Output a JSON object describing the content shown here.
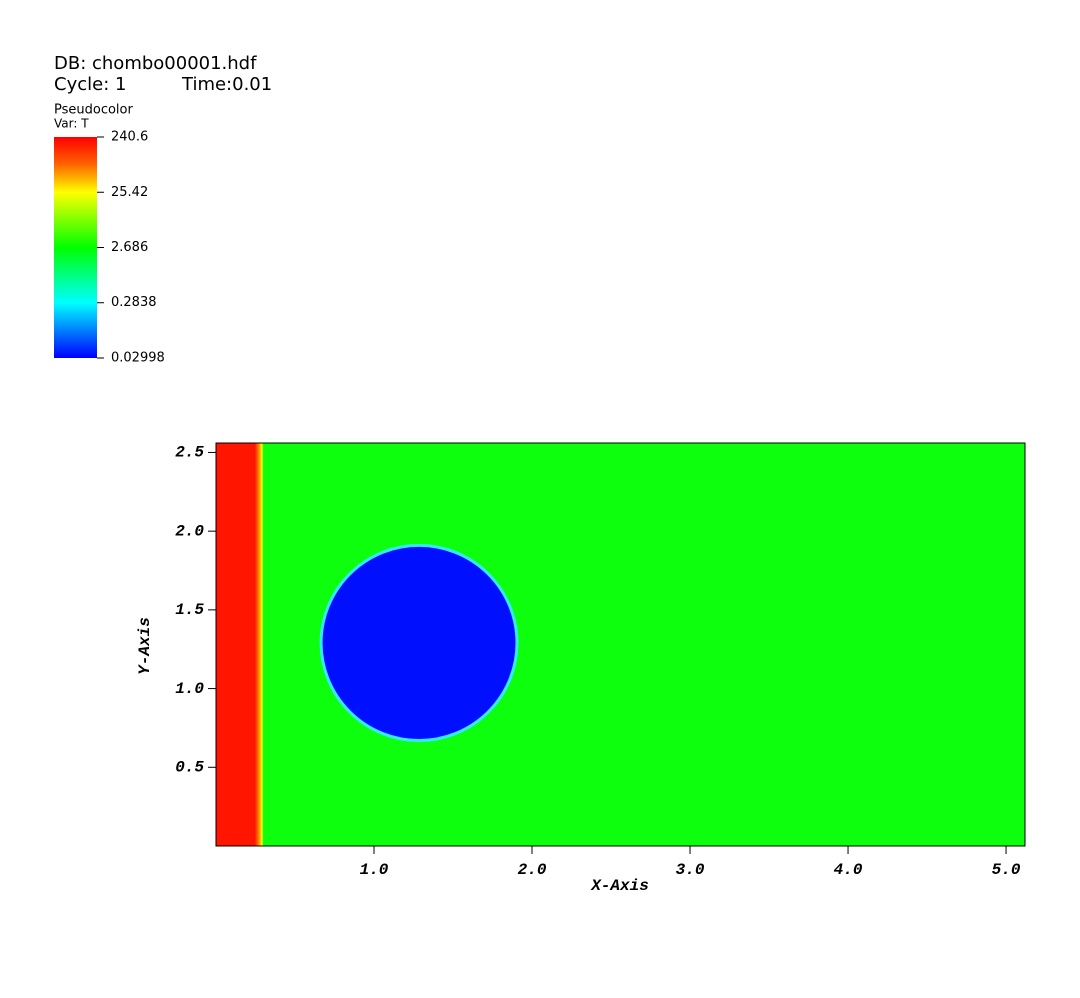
{
  "chart_data": {
    "type": "pseudocolor",
    "db_label": "DB: chombo00001.hdf",
    "cycle_label": "Cycle: 1",
    "time_label": "Time:0.01",
    "legend_title": "Pseudocolor",
    "legend_var": "Var: T",
    "legend_range": [
      0.02998,
      240.6
    ],
    "legend_ticks": [
      240.6,
      25.42,
      2.686,
      0.2838,
      0.02998
    ],
    "legend_log": true,
    "xlabel": "X-Axis",
    "ylabel": "Y-Axis",
    "xlim": [
      0,
      5.12
    ],
    "ylim": [
      0,
      2.56
    ],
    "xticks": [
      {
        "value": 1,
        "label": "1.0"
      },
      {
        "value": 2,
        "label": "2.0"
      },
      {
        "value": 3,
        "label": "3.0"
      },
      {
        "value": 4,
        "label": "4.0"
      },
      {
        "value": 5,
        "label": "5.0"
      }
    ],
    "yticks": [
      0.5,
      {
        "value": 1,
        "label": "1.0"
      },
      1.5,
      {
        "value": 2,
        "label": "2.0"
      },
      2.5
    ],
    "background_color": "#0dff0d",
    "front_x": 0.3,
    "front_color": "#ff1500",
    "circle": {
      "x": 1.285,
      "y": 1.29,
      "r": 0.62,
      "color": "#0010ff",
      "edge_color": "#35e8ff"
    }
  }
}
